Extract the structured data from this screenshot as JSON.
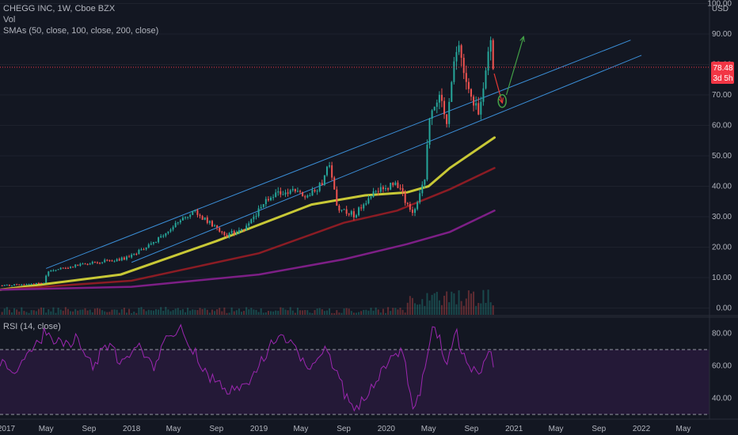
{
  "header": {
    "symbol_line": "CHEGG INC, 1W, Cboe BZX",
    "volume_label": "Vol",
    "sma_label": "SMAs (50, close, 100, close, 200, close)",
    "rsi_label": "RSI (14, close)"
  },
  "price_axis": {
    "currency": "USD",
    "ticks": [
      "100.00",
      "90.00",
      "80.00",
      "70.00",
      "60.00",
      "50.00",
      "40.00",
      "30.00",
      "20.00",
      "10.00",
      "0.00"
    ],
    "last_price": "78.48",
    "countdown": "3d 5h"
  },
  "rsi_axis": {
    "ticks": [
      "80.00",
      "60.00",
      "40.00"
    ]
  },
  "time_axis": [
    "2017",
    "May",
    "Sep",
    "2018",
    "May",
    "Sep",
    "2019",
    "May",
    "Sep",
    "2020",
    "May",
    "Sep",
    "2021",
    "May",
    "Sep",
    "2022",
    "May"
  ],
  "colors": {
    "background": "#131722",
    "up": "#26a69a",
    "down": "#ef5350",
    "sma50": "#c8c836",
    "sma100": "#8b1c24",
    "sma200": "#7d1f86",
    "channel": "#3b8fd8",
    "rsi": "#9c27b0",
    "rsi_band": "#2b1b3f",
    "annotation_down": "#e53935",
    "annotation_up": "#43a047",
    "last_price_tag": "#f23645"
  },
  "chart_data": {
    "type": "candlestick",
    "title": "CHEGG INC, 1W, Cboe BZX",
    "ylim": [
      0,
      100
    ],
    "x_range": [
      "2016-12-20",
      "2022-07-15"
    ],
    "price_path": [
      [
        "2016-12-26",
        7.4
      ],
      [
        "2017-03-01",
        7.7
      ],
      [
        "2017-04-25",
        8.3
      ],
      [
        "2017-05-05",
        12.0
      ],
      [
        "2017-09-01",
        14.8
      ],
      [
        "2017-12-15",
        16.3
      ],
      [
        "2018-03-01",
        21.0
      ],
      [
        "2018-05-01",
        27.0
      ],
      [
        "2018-07-01",
        31.5
      ],
      [
        "2018-08-15",
        28.0
      ],
      [
        "2018-10-01",
        24.0
      ],
      [
        "2018-12-01",
        27.0
      ],
      [
        "2019-02-01",
        37.0
      ],
      [
        "2019-04-01",
        38.5
      ],
      [
        "2019-05-20",
        37.0
      ],
      [
        "2019-07-01",
        40.5
      ],
      [
        "2019-07-20",
        47.0
      ],
      [
        "2019-08-15",
        33.0
      ],
      [
        "2019-10-01",
        30.5
      ],
      [
        "2019-12-01",
        38.0
      ],
      [
        "2020-02-01",
        41.0
      ],
      [
        "2020-03-18",
        30.0
      ],
      [
        "2020-04-20",
        43.0
      ],
      [
        "2020-05-05",
        65.0
      ],
      [
        "2020-06-01",
        70.0
      ],
      [
        "2020-06-20",
        60.0
      ],
      [
        "2020-07-10",
        78.0
      ],
      [
        "2020-07-25",
        87.0
      ],
      [
        "2020-08-15",
        76.0
      ],
      [
        "2020-09-01",
        70.0
      ],
      [
        "2020-09-20",
        65.0
      ],
      [
        "2020-10-10",
        74.0
      ],
      [
        "2020-10-25",
        88.0
      ],
      [
        "2020-11-06",
        78.48
      ]
    ],
    "last_close": 78.48,
    "channel_lines": [
      {
        "name": "upper",
        "from": [
          "2017-05-01",
          13.0
        ],
        "to": [
          "2021-12-01",
          88.0
        ]
      },
      {
        "name": "lower",
        "from": [
          "2018-01-01",
          15.0
        ],
        "to": [
          "2022-01-01",
          83.0
        ]
      }
    ],
    "sma_series": [
      {
        "name": "SMA 50",
        "points": [
          [
            "2016-12-20",
            6.0
          ],
          [
            "2017-12-01",
            11.0
          ],
          [
            "2018-09-01",
            22.0
          ],
          [
            "2019-06-01",
            34.0
          ],
          [
            "2019-11-01",
            37.0
          ],
          [
            "2020-03-01",
            38.0
          ],
          [
            "2020-05-01",
            40.0
          ],
          [
            "2020-07-01",
            46.0
          ],
          [
            "2020-11-06",
            56.0
          ]
        ]
      },
      {
        "name": "SMA 100",
        "points": [
          [
            "2016-12-20",
            6.0
          ],
          [
            "2018-01-01",
            9.0
          ],
          [
            "2019-01-01",
            18.0
          ],
          [
            "2019-09-01",
            28.0
          ],
          [
            "2020-02-01",
            32.0
          ],
          [
            "2020-07-01",
            39.0
          ],
          [
            "2020-11-06",
            46.0
          ]
        ]
      },
      {
        "name": "SMA 200",
        "points": [
          [
            "2016-12-20",
            6.0
          ],
          [
            "2018-01-01",
            7.0
          ],
          [
            "2019-01-01",
            11.0
          ],
          [
            "2019-09-01",
            16.0
          ],
          [
            "2020-03-01",
            21.0
          ],
          [
            "2020-07-01",
            25.0
          ],
          [
            "2020-11-06",
            32.0
          ]
        ]
      }
    ],
    "annotations": [
      {
        "type": "arrow",
        "color": "down",
        "from": [
          "2020-11-05",
          77.0
        ],
        "to": [
          "2020-11-28",
          67.5
        ]
      },
      {
        "type": "ellipse",
        "color": "up",
        "at": [
          "2020-11-28",
          68.0
        ]
      },
      {
        "type": "arrow",
        "color": "up",
        "from": [
          "2020-12-10",
          70.0
        ],
        "to": [
          "2021-01-28",
          89.0
        ]
      }
    ],
    "rsi": {
      "ylim": [
        25,
        95
      ],
      "overbought": 70,
      "oversold": 30,
      "points": [
        [
          "2016-12-20",
          62
        ],
        [
          "2017-02-01",
          57
        ],
        [
          "2017-03-20",
          67
        ],
        [
          "2017-05-01",
          82
        ],
        [
          "2017-06-15",
          72
        ],
        [
          "2017-08-01",
          78
        ],
        [
          "2017-09-15",
          58
        ],
        [
          "2017-10-15",
          76
        ],
        [
          "2017-12-01",
          62
        ],
        [
          "2018-01-15",
          74
        ],
        [
          "2018-03-01",
          58
        ],
        [
          "2018-04-15",
          80
        ],
        [
          "2018-05-25",
          84
        ],
        [
          "2018-07-01",
          68
        ],
        [
          "2018-08-10",
          54
        ],
        [
          "2018-09-20",
          47
        ],
        [
          "2018-10-25",
          43
        ],
        [
          "2018-12-10",
          51
        ],
        [
          "2019-01-20",
          68
        ],
        [
          "2019-03-01",
          79
        ],
        [
          "2019-04-15",
          71
        ],
        [
          "2019-05-25",
          60
        ],
        [
          "2019-07-10",
          72
        ],
        [
          "2019-08-10",
          55
        ],
        [
          "2019-09-10",
          40
        ],
        [
          "2019-10-10",
          34
        ],
        [
          "2019-11-20",
          48
        ],
        [
          "2020-01-01",
          62
        ],
        [
          "2020-02-15",
          72
        ],
        [
          "2020-03-20",
          31
        ],
        [
          "2020-04-20",
          55
        ],
        [
          "2020-05-10",
          83
        ],
        [
          "2020-06-01",
          77
        ],
        [
          "2020-06-20",
          60
        ],
        [
          "2020-07-15",
          83
        ],
        [
          "2020-08-15",
          62
        ],
        [
          "2020-09-20",
          54
        ],
        [
          "2020-10-25",
          70
        ],
        [
          "2020-11-06",
          58
        ]
      ]
    }
  }
}
